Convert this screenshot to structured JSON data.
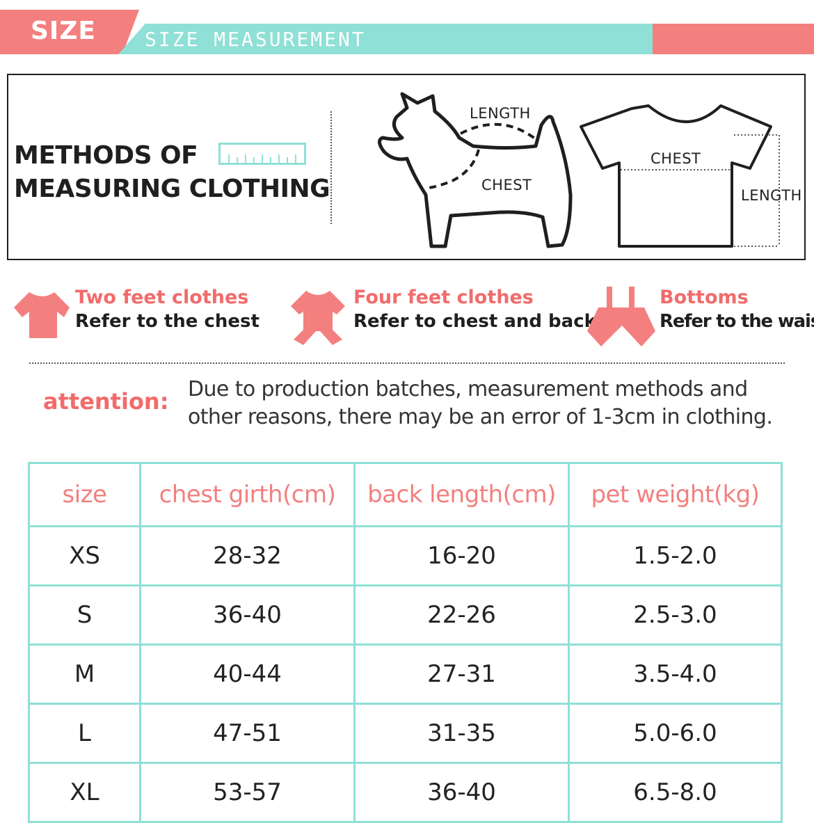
{
  "header": {
    "size_label": "SIZE",
    "subtitle": "SIZE MEASUREMENT",
    "colors": {
      "pink": "#f47f7f",
      "teal": "#8fe0d6"
    }
  },
  "methods": {
    "title_line1": "METHODS OF",
    "title_line2": "MEASURING CLOTHING",
    "dog_length_label": "LENGTH",
    "dog_chest_label": "CHEST",
    "shirt_chest_label": "CHEST",
    "shirt_length_label": "LENGTH",
    "icons": [
      "ruler-icon",
      "dog-outline-icon",
      "tshirt-outline-icon"
    ]
  },
  "categories": [
    {
      "icon": "two-feet-shirt-icon",
      "title": "Two feet clothes",
      "desc": "Refer to the chest"
    },
    {
      "icon": "four-feet-suit-icon",
      "title": "Four feet clothes",
      "desc": "Refer to chest and back"
    },
    {
      "icon": "bottoms-icon",
      "title": "Bottoms",
      "desc": "Refer to the waist"
    }
  ],
  "attention": {
    "label": "attention:",
    "line1": "Due to production batches, measurement methods and",
    "line2": "other reasons, there may be an error of 1-3cm in clothing."
  },
  "table": {
    "headers": [
      "size",
      "chest girth(cm)",
      "back length(cm)",
      "pet weight(kg)"
    ],
    "rows": [
      [
        "XS",
        "28-32",
        "16-20",
        "1.5-2.0"
      ],
      [
        "S",
        "36-40",
        "22-26",
        "2.5-3.0"
      ],
      [
        "M",
        "40-44",
        "27-31",
        "3.5-4.0"
      ],
      [
        "L",
        "47-51",
        "31-35",
        "5.0-6.0"
      ],
      [
        "XL",
        "53-57",
        "36-40",
        "6.5-8.0"
      ]
    ]
  }
}
